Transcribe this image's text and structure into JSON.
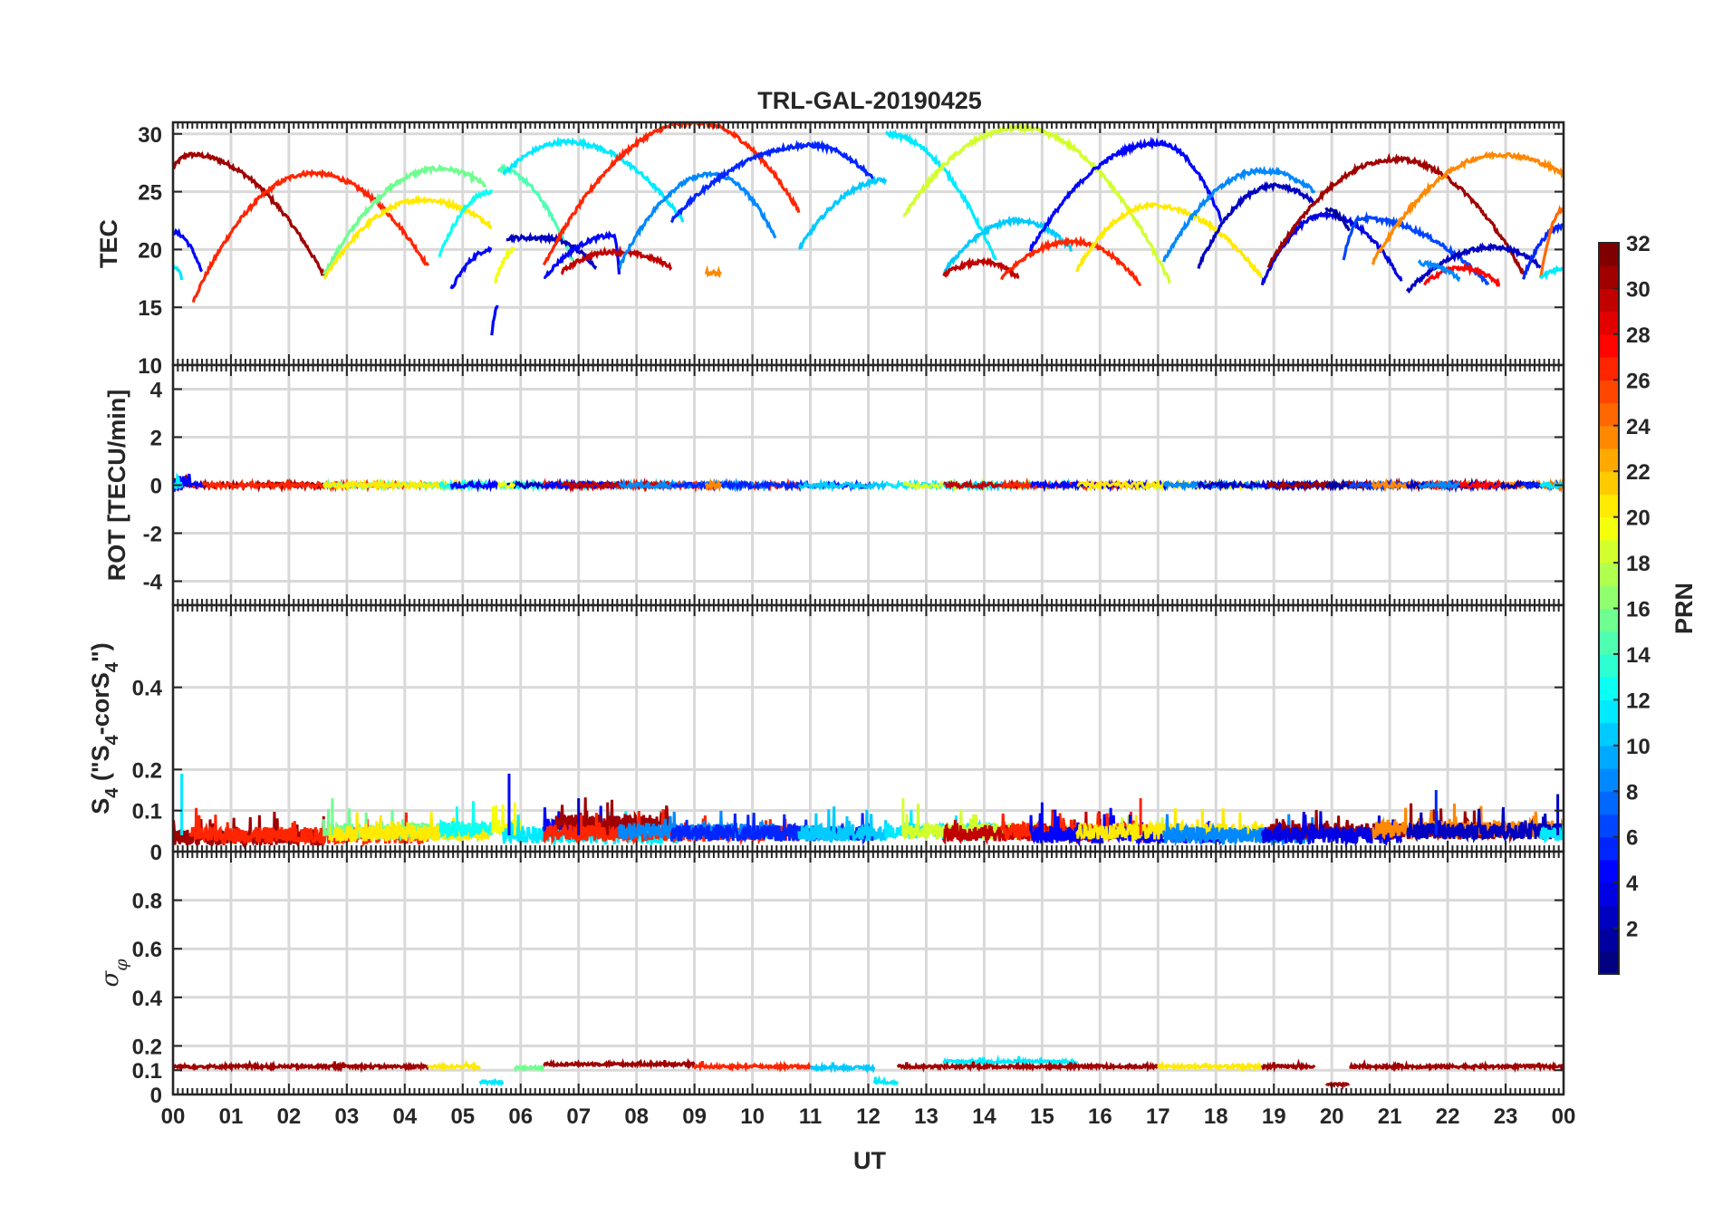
{
  "chart_data": {
    "type": "line",
    "title": "TRL-GAL-20190425",
    "xlabel": "UT",
    "x_ticks": [
      "00",
      "01",
      "02",
      "03",
      "04",
      "05",
      "06",
      "07",
      "08",
      "09",
      "10",
      "11",
      "12",
      "13",
      "14",
      "15",
      "16",
      "17",
      "18",
      "19",
      "20",
      "21",
      "22",
      "23",
      "00"
    ],
    "xlim": [
      0,
      24
    ],
    "grid": true,
    "colormap": "jet",
    "colorbar": {
      "label": "PRN",
      "range": [
        1,
        32
      ],
      "ticks": [
        2,
        4,
        6,
        8,
        10,
        12,
        14,
        16,
        18,
        20,
        22,
        24,
        26,
        28,
        30,
        32
      ],
      "placement": "right"
    },
    "panels": [
      {
        "id": "tec",
        "ylabel": "TEC",
        "ylim": [
          10,
          31
        ],
        "yticks": [
          10,
          15,
          20,
          25,
          30
        ]
      },
      {
        "id": "rot",
        "ylabel": "ROT [TECU/min]",
        "ylim": [
          -5,
          5
        ],
        "yticks": [
          -4,
          -2,
          0,
          2,
          4
        ]
      },
      {
        "id": "s4",
        "ylabel_main": "S",
        "ylabel_sub": "4",
        "ylabel_rest": " (\"S",
        "ylabel_sub2": "4",
        "ylabel_rest2": "-corS",
        "ylabel_sub3": "4",
        "ylabel_end": "\")",
        "ylim": [
          0,
          0.6
        ],
        "yticks": [
          0,
          0.1,
          0.2,
          0.4
        ]
      },
      {
        "id": "sigma",
        "ylabel_main": "σ",
        "ylabel_sub": "φ",
        "ylim": [
          0,
          1
        ],
        "yticks": [
          0,
          0.1,
          0.2,
          0.4,
          0.6,
          0.8
        ]
      }
    ],
    "tec_arcs": [
      {
        "prn": 31,
        "t0": 0.0,
        "t1": 2.6,
        "tp": 0.3,
        "peak": 28.2,
        "e0": 27.0,
        "e1": 17.8
      },
      {
        "prn": 27,
        "t0": 0.35,
        "t1": 4.4,
        "tp": 2.4,
        "peak": 26.6,
        "e0": 15.6,
        "e1": 18.5
      },
      {
        "prn": 5,
        "t0": 0.0,
        "t1": 0.5,
        "tp": 0.0,
        "peak": 21.5,
        "e0": 21.5,
        "e1": 18.0
      },
      {
        "prn": 12,
        "t0": 0.0,
        "t1": 0.15,
        "tp": 0.0,
        "peak": 18.5,
        "e0": 18.5,
        "e1": 17.5
      },
      {
        "prn": 16,
        "t0": 2.6,
        "t1": 5.4,
        "tp": 4.6,
        "peak": 27.0,
        "e0": 17.8,
        "e1": 25.5
      },
      {
        "prn": 21,
        "t0": 2.6,
        "t1": 5.5,
        "tp": 4.3,
        "peak": 24.3,
        "e0": 17.4,
        "e1": 22.0
      },
      {
        "prn": 13,
        "t0": 4.6,
        "t1": 5.5,
        "tp": 5.5,
        "peak": 25.0,
        "e0": 19.5,
        "e1": 25.0
      },
      {
        "prn": 5,
        "t0": 4.8,
        "t1": 5.5,
        "tp": 5.5,
        "peak": 20.0,
        "e0": 16.5,
        "e1": 20.0
      },
      {
        "prn": 15,
        "t0": 5.6,
        "t1": 6.9,
        "tp": 5.6,
        "peak": 27.0,
        "e0": 27.0,
        "e1": 19.0
      },
      {
        "prn": 12,
        "t0": 5.7,
        "t1": 8.8,
        "tp": 6.8,
        "peak": 29.3,
        "e0": 26.5,
        "e1": 22.5
      },
      {
        "prn": 3,
        "t0": 5.75,
        "t1": 7.3,
        "tp": 6.4,
        "peak": 21.0,
        "e0": 21.0,
        "e1": 18.5
      },
      {
        "prn": 20,
        "t0": 5.55,
        "t1": 5.9,
        "tp": 5.9,
        "peak": 20.0,
        "e0": 17.0,
        "e1": 20.0
      },
      {
        "prn": 27,
        "t0": 6.4,
        "t1": 10.8,
        "tp": 9.0,
        "peak": 31.0,
        "e0": 18.7,
        "e1": 23.3
      },
      {
        "prn": 5,
        "t0": 6.4,
        "t1": 7.7,
        "tp": 7.6,
        "peak": 21.2,
        "e0": 17.5,
        "e1": 18.0
      },
      {
        "prn": 30,
        "t0": 6.7,
        "t1": 8.6,
        "tp": 7.6,
        "peak": 19.8,
        "e0": 18.0,
        "e1": 18.5
      },
      {
        "prn": 9,
        "t0": 7.7,
        "t1": 10.4,
        "tp": 9.3,
        "peak": 26.5,
        "e0": 18.5,
        "e1": 21.0
      },
      {
        "prn": 6,
        "t0": 8.6,
        "t1": 12.1,
        "tp": 11.0,
        "peak": 29.0,
        "e0": 22.5,
        "e1": 26.0
      },
      {
        "prn": 11,
        "t0": 10.8,
        "t1": 12.3,
        "tp": 12.3,
        "peak": 26.0,
        "e0": 20.0,
        "e1": 26.0
      },
      {
        "prn": 12,
        "t0": 12.3,
        "t1": 14.2,
        "tp": 12.3,
        "peak": 30.0,
        "e0": 30.0,
        "e1": 19.0
      },
      {
        "prn": 19,
        "t0": 12.6,
        "t1": 17.2,
        "tp": 14.6,
        "peak": 30.5,
        "e0": 22.8,
        "e1": 17.2
      },
      {
        "prn": 11,
        "t0": 13.3,
        "t1": 15.5,
        "tp": 14.6,
        "peak": 22.5,
        "e0": 18.0,
        "e1": 20.0
      },
      {
        "prn": 30,
        "t0": 13.3,
        "t1": 14.6,
        "tp": 14.0,
        "peak": 18.9,
        "e0": 17.8,
        "e1": 17.5
      },
      {
        "prn": 27,
        "t0": 14.3,
        "t1": 16.7,
        "tp": 15.5,
        "peak": 20.7,
        "e0": 17.5,
        "e1": 17.0
      },
      {
        "prn": 5,
        "t0": 14.8,
        "t1": 18.1,
        "tp": 17.0,
        "peak": 29.2,
        "e0": 20.0,
        "e1": 22.5
      },
      {
        "prn": 21,
        "t0": 15.6,
        "t1": 18.8,
        "tp": 16.9,
        "peak": 23.8,
        "e0": 18.2,
        "e1": 17.5
      },
      {
        "prn": 9,
        "t0": 17.1,
        "t1": 19.7,
        "tp": 18.8,
        "peak": 26.8,
        "e0": 19.0,
        "e1": 25.0
      },
      {
        "prn": 3,
        "t0": 17.7,
        "t1": 19.7,
        "tp": 19.0,
        "peak": 25.5,
        "e0": 18.5,
        "e1": 24.0
      },
      {
        "prn": 4,
        "t0": 18.8,
        "t1": 21.2,
        "tp": 19.9,
        "peak": 23.0,
        "e0": 17.0,
        "e1": 17.3
      },
      {
        "prn": 31,
        "t0": 18.9,
        "t1": 23.3,
        "tp": 21.1,
        "peak": 27.8,
        "e0": 18.5,
        "e1": 18.0
      },
      {
        "prn": 7,
        "t0": 20.2,
        "t1": 22.7,
        "tp": 20.5,
        "peak": 22.7,
        "e0": 19.0,
        "e1": 17.0
      },
      {
        "prn": 24,
        "t0": 20.7,
        "t1": 24.0,
        "tp": 22.9,
        "peak": 28.2,
        "e0": 18.8,
        "e1": 26.5
      },
      {
        "prn": 3,
        "t0": 21.3,
        "t1": 23.6,
        "tp": 22.8,
        "peak": 20.2,
        "e0": 16.4,
        "e1": 18.5
      },
      {
        "prn": 28,
        "t0": 21.6,
        "t1": 22.9,
        "tp": 22.2,
        "peak": 18.4,
        "e0": 17.0,
        "e1": 17.0
      },
      {
        "prn": 9,
        "t0": 21.5,
        "t1": 22.2,
        "tp": 21.5,
        "peak": 18.8,
        "e0": 18.8,
        "e1": 17.5
      },
      {
        "prn": 6,
        "t0": 23.3,
        "t1": 24.0,
        "tp": 24.0,
        "peak": 22.0,
        "e0": 17.5,
        "e1": 22.0
      },
      {
        "prn": 25,
        "t0": 23.6,
        "t1": 24.0,
        "tp": 24.0,
        "peak": 23.5,
        "e0": 17.5,
        "e1": 23.5
      },
      {
        "prn": 12,
        "t0": 23.6,
        "t1": 24.0,
        "tp": 24.0,
        "peak": 18.3,
        "e0": 17.5,
        "e1": 18.3
      },
      {
        "prn": 5,
        "t0": 5.5,
        "t1": 5.6,
        "tp": 5.6,
        "peak": 15.0,
        "e0": 12.5,
        "e1": 15.0
      },
      {
        "prn": 24,
        "t0": 9.2,
        "t1": 9.45,
        "tp": 9.3,
        "peak": 18.0,
        "e0": 18.0,
        "e1": 18.0
      },
      {
        "prn": 2,
        "t0": 19.9,
        "t1": 20.3,
        "tp": 19.9,
        "peak": 23.5,
        "e0": 15.5,
        "e1": 21.5
      }
    ],
    "s4_segments": [
      {
        "prn": 31,
        "t0": 0.0,
        "t1": 2.6,
        "level": 0.035
      },
      {
        "prn": 27,
        "t0": 0.3,
        "t1": 4.4,
        "level": 0.04
      },
      {
        "prn": 16,
        "t0": 2.6,
        "t1": 5.4,
        "level": 0.05
      },
      {
        "prn": 21,
        "t0": 2.7,
        "t1": 5.5,
        "level": 0.045
      },
      {
        "prn": 13,
        "t0": 4.6,
        "t1": 5.5,
        "level": 0.055
      },
      {
        "prn": 20,
        "t0": 5.5,
        "t1": 6.0,
        "level": 0.06
      },
      {
        "prn": 12,
        "t0": 5.7,
        "t1": 8.8,
        "level": 0.04
      },
      {
        "prn": 5,
        "t0": 6.4,
        "t1": 7.7,
        "level": 0.06
      },
      {
        "prn": 31,
        "t0": 6.6,
        "t1": 8.6,
        "level": 0.07
      },
      {
        "prn": 27,
        "t0": 6.4,
        "t1": 10.8,
        "level": 0.045
      },
      {
        "prn": 9,
        "t0": 7.7,
        "t1": 10.4,
        "level": 0.05
      },
      {
        "prn": 6,
        "t0": 8.6,
        "t1": 12.1,
        "level": 0.045
      },
      {
        "prn": 11,
        "t0": 10.8,
        "t1": 12.3,
        "level": 0.045
      },
      {
        "prn": 12,
        "t0": 12.3,
        "t1": 14.2,
        "level": 0.05
      },
      {
        "prn": 19,
        "t0": 12.6,
        "t1": 17.2,
        "level": 0.05
      },
      {
        "prn": 30,
        "t0": 13.3,
        "t1": 16.0,
        "level": 0.045
      },
      {
        "prn": 27,
        "t0": 14.3,
        "t1": 16.8,
        "level": 0.05
      },
      {
        "prn": 5,
        "t0": 14.8,
        "t1": 18.1,
        "level": 0.04
      },
      {
        "prn": 21,
        "t0": 15.6,
        "t1": 18.8,
        "level": 0.05
      },
      {
        "prn": 9,
        "t0": 17.1,
        "t1": 19.7,
        "level": 0.04
      },
      {
        "prn": 31,
        "t0": 18.9,
        "t1": 23.3,
        "level": 0.05
      },
      {
        "prn": 4,
        "t0": 18.8,
        "t1": 21.2,
        "level": 0.04
      },
      {
        "prn": 24,
        "t0": 20.7,
        "t1": 24.0,
        "level": 0.055
      },
      {
        "prn": 3,
        "t0": 21.3,
        "t1": 24.0,
        "level": 0.05
      },
      {
        "prn": 12,
        "t0": 23.6,
        "t1": 24.0,
        "level": 0.045
      }
    ],
    "s4_spikes": [
      {
        "prn": 12,
        "t": 0.15,
        "v": 0.19
      },
      {
        "prn": 16,
        "t": 2.75,
        "v": 0.13
      },
      {
        "prn": 13,
        "t": 4.9,
        "v": 0.11
      },
      {
        "prn": 5,
        "t": 5.8,
        "v": 0.19
      },
      {
        "prn": 20,
        "t": 5.9,
        "v": 0.12
      },
      {
        "prn": 3,
        "t": 7.0,
        "v": 0.13
      },
      {
        "prn": 31,
        "t": 7.5,
        "v": 0.12
      },
      {
        "prn": 19,
        "t": 12.6,
        "v": 0.13
      },
      {
        "prn": 27,
        "t": 16.7,
        "v": 0.13
      },
      {
        "prn": 5,
        "t": 15.0,
        "v": 0.12
      },
      {
        "prn": 6,
        "t": 21.8,
        "v": 0.15
      },
      {
        "prn": 3,
        "t": 23.9,
        "v": 0.14
      }
    ],
    "sigma_segments": [
      {
        "prn": 31,
        "t0": 0.0,
        "t1": 4.4,
        "level": 0.115
      },
      {
        "prn": 21,
        "t0": 4.4,
        "t1": 5.3,
        "level": 0.115
      },
      {
        "prn": 12,
        "t0": 5.3,
        "t1": 5.7,
        "level": 0.05
      },
      {
        "prn": 16,
        "t0": 5.9,
        "t1": 6.4,
        "level": 0.11
      },
      {
        "prn": 31,
        "t0": 6.4,
        "t1": 9.0,
        "level": 0.125
      },
      {
        "prn": 27,
        "t0": 9.0,
        "t1": 11.0,
        "level": 0.115
      },
      {
        "prn": 11,
        "t0": 11.0,
        "t1": 12.1,
        "level": 0.11
      },
      {
        "prn": 12,
        "t0": 12.1,
        "t1": 12.5,
        "level": 0.05
      },
      {
        "prn": 12,
        "t0": 13.3,
        "t1": 15.6,
        "level": 0.135
      },
      {
        "prn": 31,
        "t0": 12.5,
        "t1": 17.0,
        "level": 0.115
      },
      {
        "prn": 21,
        "t0": 17.0,
        "t1": 18.8,
        "level": 0.115
      },
      {
        "prn": 31,
        "t0": 18.8,
        "t1": 19.7,
        "level": 0.115
      },
      {
        "prn": 31,
        "t0": 19.9,
        "t1": 20.3,
        "level": 0.04
      },
      {
        "prn": 31,
        "t0": 20.3,
        "t1": 24.0,
        "level": 0.115
      }
    ]
  }
}
